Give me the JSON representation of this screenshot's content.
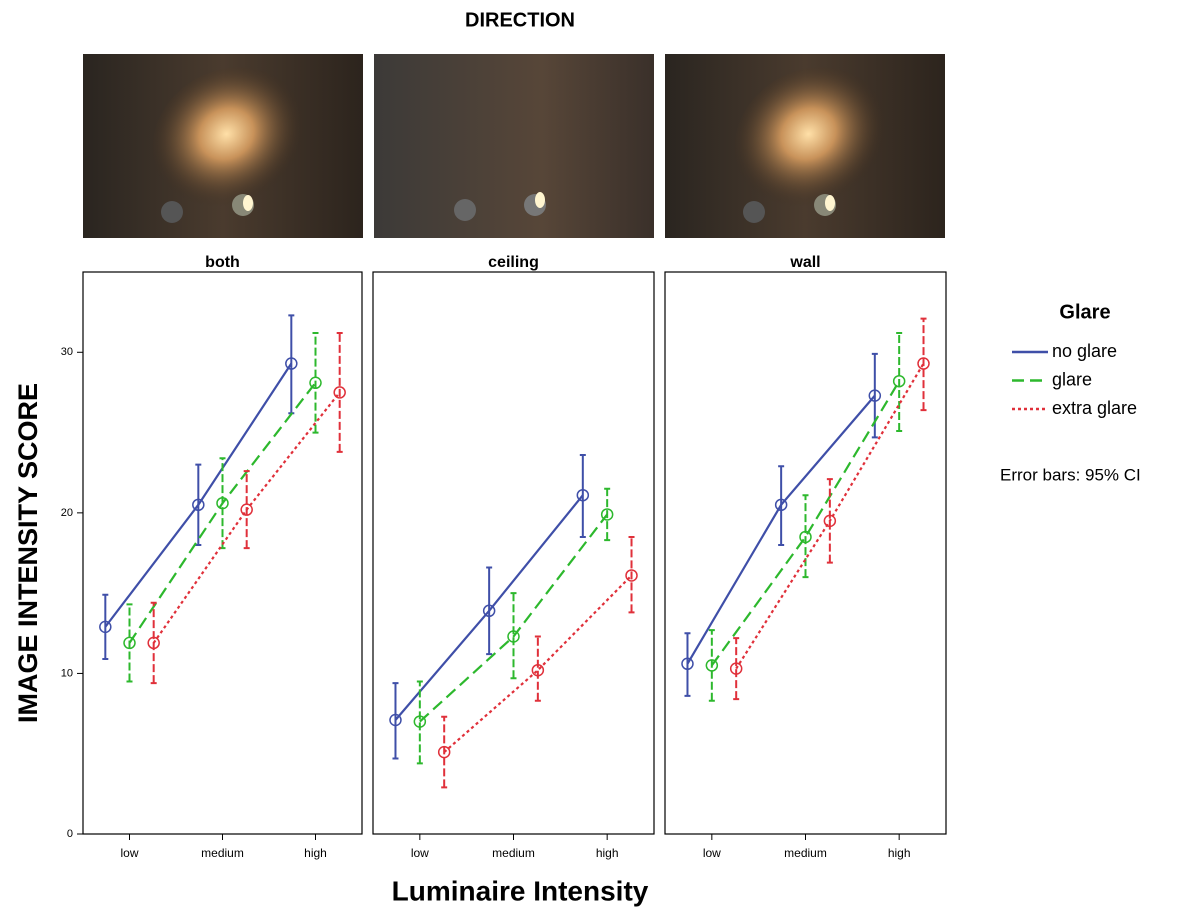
{
  "chart_data": {
    "type": "line",
    "title": "DIRECTION",
    "x_label": "Luminaire Intensity",
    "y_label": "IMAGE INTENSITY SCORE",
    "legend_title": "Glare",
    "note": "Error bars: 95% CI",
    "categories": [
      "low",
      "medium",
      "high"
    ],
    "ylim": [
      0,
      35
    ],
    "yticks": [
      0,
      10,
      20,
      30
    ],
    "series": [
      {
        "name": "no glare",
        "color": "#3f4fa8",
        "dash": "none"
      },
      {
        "name": "glare",
        "color": "#2db82d",
        "dash": "12 6"
      },
      {
        "name": "extra glare",
        "color": "#e0303a",
        "dash": "3 3"
      }
    ],
    "panels": [
      {
        "title": "both",
        "values": [
          [
            12.9,
            20.5,
            29.3
          ],
          [
            11.9,
            20.6,
            28.1
          ],
          [
            11.9,
            20.2,
            27.5
          ]
        ],
        "ci_low": [
          [
            10.9,
            18.0,
            26.2
          ],
          [
            9.5,
            17.8,
            25.0
          ],
          [
            9.4,
            17.8,
            23.8
          ]
        ],
        "ci_high": [
          [
            14.9,
            23.0,
            32.3
          ],
          [
            14.3,
            23.4,
            31.2
          ],
          [
            14.4,
            22.6,
            31.2
          ]
        ]
      },
      {
        "title": "ceiling",
        "values": [
          [
            7.1,
            13.9,
            21.1
          ],
          [
            7.0,
            12.3,
            19.9
          ],
          [
            5.1,
            10.2,
            16.1
          ]
        ],
        "ci_low": [
          [
            4.7,
            11.2,
            18.5
          ],
          [
            4.4,
            9.7,
            18.3
          ],
          [
            2.9,
            8.3,
            13.8
          ]
        ],
        "ci_high": [
          [
            9.4,
            16.6,
            23.6
          ],
          [
            9.5,
            15.0,
            21.5
          ],
          [
            7.3,
            12.3,
            18.5
          ]
        ]
      },
      {
        "title": "wall",
        "values": [
          [
            10.6,
            20.5,
            27.3
          ],
          [
            10.5,
            18.5,
            28.2
          ],
          [
            10.3,
            19.5,
            29.3
          ]
        ],
        "ci_low": [
          [
            8.6,
            18.0,
            24.7
          ],
          [
            8.3,
            16.0,
            25.1
          ],
          [
            8.4,
            16.9,
            26.4
          ]
        ],
        "ci_high": [
          [
            12.5,
            22.9,
            29.9
          ],
          [
            12.7,
            21.1,
            31.2
          ],
          [
            12.2,
            22.1,
            32.1
          ]
        ]
      }
    ]
  }
}
